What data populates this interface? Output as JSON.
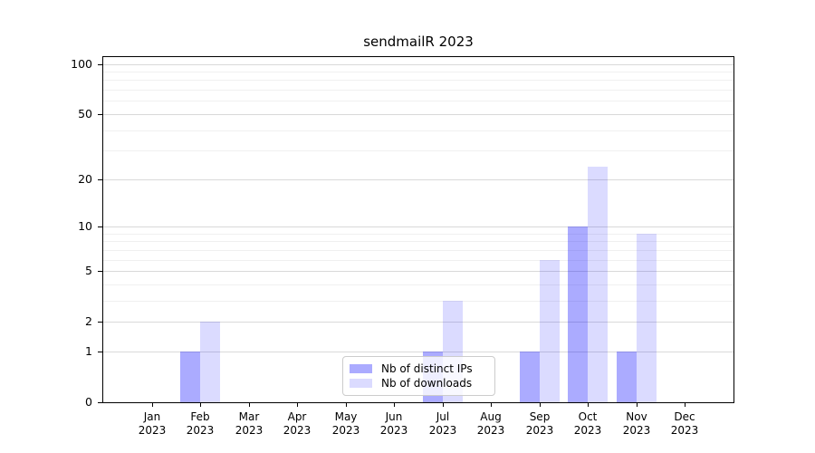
{
  "chart_data": {
    "type": "bar",
    "title": "sendmailR 2023",
    "x_categories": [
      "Jan",
      "Feb",
      "Mar",
      "Apr",
      "May",
      "Jun",
      "Jul",
      "Aug",
      "Sep",
      "Oct",
      "Nov",
      "Dec"
    ],
    "x_year_label": "2023",
    "series": [
      {
        "name": "Nb of distinct IPs",
        "color": "rgba(0,0,255,0.33)",
        "values": [
          0,
          1,
          0,
          0,
          0,
          0,
          1,
          0,
          1,
          10,
          1,
          0
        ]
      },
      {
        "name": "Nb of downloads",
        "color": "rgba(0,0,255,0.14)",
        "values": [
          0,
          2,
          0,
          0,
          0,
          0,
          3,
          0,
          6,
          24,
          9,
          0
        ]
      }
    ],
    "y_axis": {
      "scale": "log1p",
      "max": 110,
      "major_ticks": [
        0,
        1,
        2,
        5,
        10,
        20,
        50,
        100
      ],
      "minor_ticks": [
        3,
        4,
        6,
        7,
        8,
        9,
        30,
        40,
        60,
        70,
        80,
        90
      ]
    },
    "grid": {
      "show": true,
      "major_color": "#d9d9d9",
      "minor_color": "#f0f0f0"
    },
    "legend": {
      "position": "lower center inside"
    },
    "colors": {
      "spine": "#000000",
      "background": "#ffffff"
    }
  }
}
